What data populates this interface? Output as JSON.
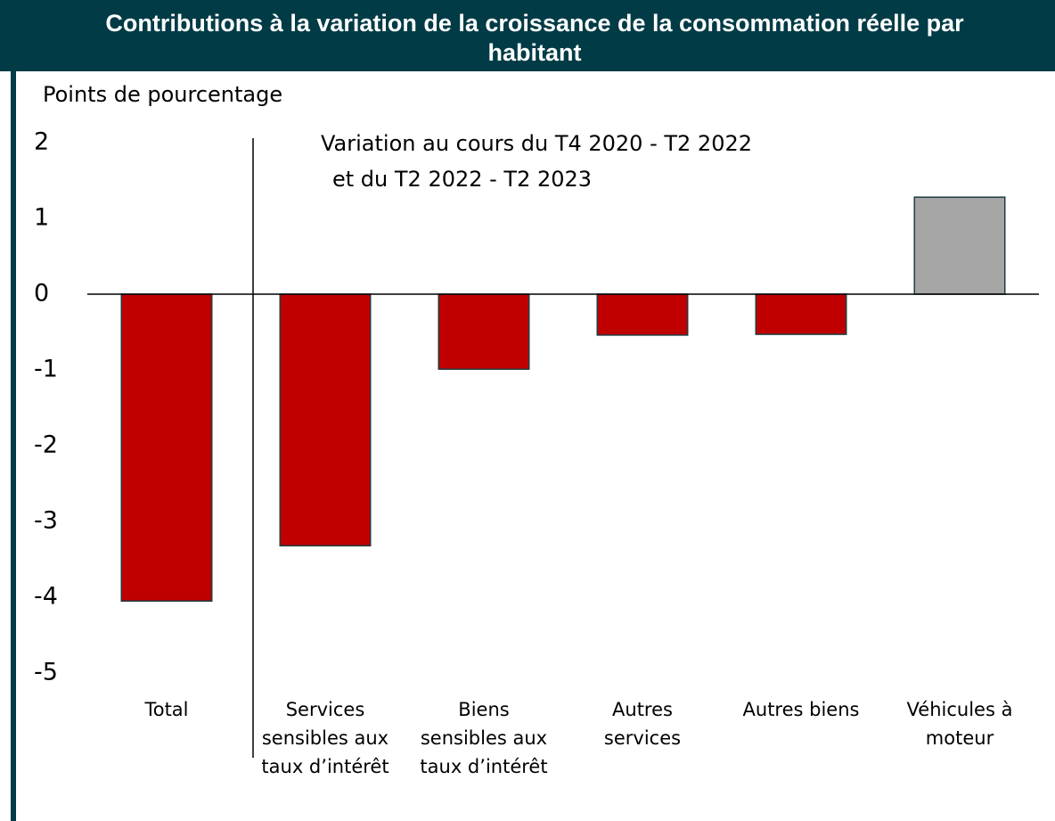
{
  "chart_data": {
    "type": "bar",
    "title": [
      "Contributions à la variation de la croissance de la consommation réelle par",
      "habitant"
    ],
    "y_label": "Points de pourcentage",
    "annotation": [
      "Variation au cours du T4 2020 - T2 2022",
      "et du T2 2022 - T2 2023"
    ],
    "categories": [
      [
        "Total"
      ],
      [
        "Services",
        "sensibles aux",
        "taux d’intérêt"
      ],
      [
        "Biens",
        "sensibles aux",
        "taux d’intérêt"
      ],
      [
        "Autres",
        "services"
      ],
      [
        "Autres biens"
      ],
      [
        "Véhicules à",
        "moteur"
      ]
    ],
    "values": [
      -4.05,
      -3.32,
      -0.99,
      -0.54,
      -0.53,
      1.28
    ],
    "colors": [
      "#c00000",
      "#c00000",
      "#c00000",
      "#c00000",
      "#c00000",
      "#a6a6a6"
    ],
    "ylim": [
      -5,
      2
    ],
    "yticks": [
      -5,
      -4,
      -3,
      -2,
      -1,
      0,
      1,
      2
    ]
  }
}
